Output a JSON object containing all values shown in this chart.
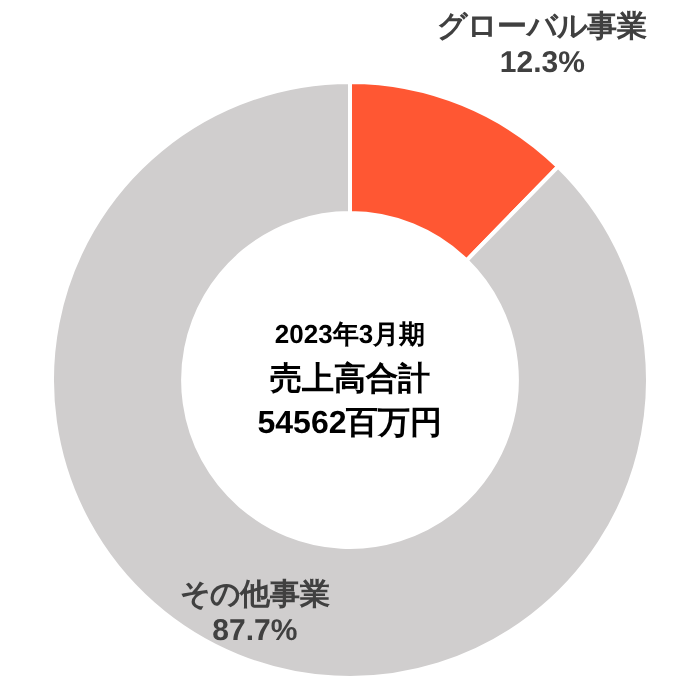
{
  "chart_data": {
    "type": "donut",
    "categories": [
      "グローバル事業",
      "その他事業"
    ],
    "values": [
      12.3,
      87.7
    ],
    "colors": [
      "#ff5733",
      "#d0cece"
    ],
    "value_labels": [
      "12.3%",
      "87.7%"
    ],
    "annotations": [
      "2023年3月期",
      "売上高合計",
      "54562百万円"
    ],
    "legend": false
  }
}
